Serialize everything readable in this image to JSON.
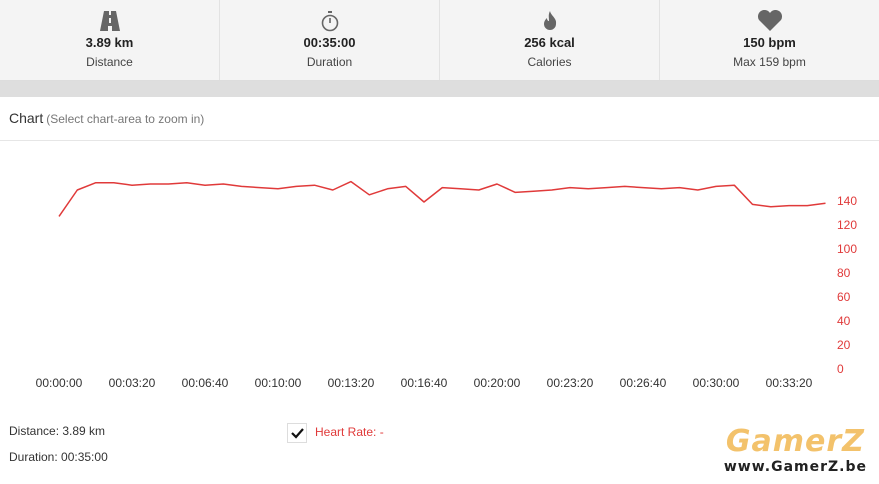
{
  "stats": [
    {
      "value": "3.89 km",
      "label": "Distance"
    },
    {
      "value": "00:35:00",
      "label": "Duration"
    },
    {
      "value": "256 kcal",
      "label": "Calories"
    },
    {
      "value": "150 bpm",
      "label": "Max 159 bpm"
    }
  ],
  "chart_header": {
    "title": "Chart",
    "hint": "(Select chart-area to zoom in)"
  },
  "chart_data": {
    "type": "line",
    "x": [
      0,
      50,
      100,
      150,
      200,
      250,
      300,
      350,
      400,
      450,
      500,
      550,
      600,
      650,
      700,
      750,
      800,
      850,
      900,
      950,
      1000,
      1050,
      1100,
      1150,
      1200,
      1250,
      1300,
      1350,
      1400,
      1450,
      1500,
      1550,
      1600,
      1650,
      1700,
      1750,
      1800,
      1850,
      1900,
      1950,
      2000,
      2050,
      2100
    ],
    "series": [
      {
        "name": "Heart Rate: -",
        "color": "#e03a3a",
        "values": [
          128,
          150,
          156,
          156,
          154,
          155,
          155,
          156,
          154,
          155,
          153,
          152,
          151,
          153,
          154,
          150,
          157,
          146,
          151,
          153,
          140,
          152,
          151,
          150,
          155,
          148,
          149,
          150,
          152,
          151,
          152,
          153,
          152,
          151,
          152,
          150,
          153,
          154,
          138,
          136,
          137,
          137,
          139
        ]
      }
    ],
    "xlim": [
      0,
      2100
    ],
    "xticks": [
      {
        "value": 0,
        "label": "00:00:00"
      },
      {
        "value": 200,
        "label": "00:03:20"
      },
      {
        "value": 400,
        "label": "00:06:40"
      },
      {
        "value": 600,
        "label": "00:10:00"
      },
      {
        "value": 800,
        "label": "00:13:20"
      },
      {
        "value": 1000,
        "label": "00:16:40"
      },
      {
        "value": 1200,
        "label": "00:20:00"
      },
      {
        "value": 1400,
        "label": "00:23:20"
      },
      {
        "value": 1600,
        "label": "00:26:40"
      },
      {
        "value": 1800,
        "label": "00:30:00"
      },
      {
        "value": 2000,
        "label": "00:33:20"
      }
    ],
    "ylim": [
      0,
      180
    ],
    "yticks": [
      0,
      20,
      40,
      60,
      80,
      100,
      120,
      140
    ],
    "ytick_color": "#e03a3a",
    "grid": false
  },
  "footer": {
    "lines": [
      "Distance: 3.89 km",
      "Duration: 00:35:00"
    ]
  },
  "watermark": {
    "brand": "GamerZ",
    "url": "www.GamerZ.be"
  }
}
